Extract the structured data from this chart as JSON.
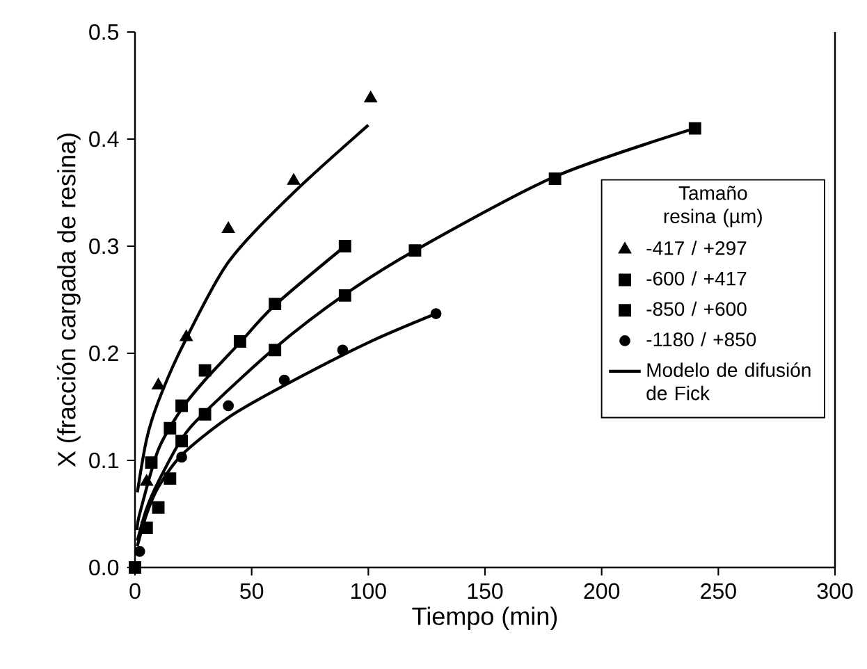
{
  "chart_data": {
    "type": "scatter",
    "xlabel": "Tiempo (min)",
    "ylabel": "X (fracción cargada de resina)",
    "legend_title": "Tamaño resina (µm)",
    "legend": "right",
    "xlim": [
      0,
      300
    ],
    "xticks": [
      0,
      50,
      100,
      150,
      200,
      250,
      300
    ],
    "ylim": [
      0,
      0.5
    ],
    "yticks": [
      {
        "value": 0,
        "label": "0.0"
      },
      {
        "value": 0.1,
        "label": "0.1"
      },
      {
        "value": 0.2,
        "label": "0.2"
      },
      {
        "value": 0.3,
        "label": "0.3"
      },
      {
        "value": 0.4,
        "label": "0.4"
      },
      {
        "value": 0.5,
        "label": "0.5"
      }
    ],
    "series": [
      {
        "name": "-417 / +297",
        "color": "#000000",
        "marker": "triangle",
        "x": [
          5,
          10,
          22,
          40,
          68,
          101
        ],
        "values": [
          0.08,
          0.17,
          0.215,
          0.316,
          0.361,
          0.438
        ]
      },
      {
        "name": "-600 / +417",
        "color": "#000000",
        "marker": "square",
        "x": [
          7,
          15,
          20,
          30,
          45,
          60,
          90
        ],
        "values": [
          0.098,
          0.13,
          0.151,
          0.184,
          0.211,
          0.246,
          0.3
        ]
      },
      {
        "name": "-850 / +600",
        "color": "#000000",
        "marker": "square",
        "x": [
          0,
          5,
          10,
          15,
          20,
          30,
          60,
          90,
          120,
          180,
          240
        ],
        "values": [
          0,
          0.037,
          0.056,
          0.083,
          0.118,
          0.143,
          0.203,
          0.254,
          0.296,
          0.363,
          0.41
        ]
      },
      {
        "name": "-1180 / +850",
        "color": "#000000",
        "marker": "circle",
        "x": [
          2,
          20,
          40,
          64,
          89,
          129
        ],
        "values": [
          0.015,
          0.103,
          0.151,
          0.175,
          0.203,
          0.237
        ]
      },
      {
        "name": "Modelo de difusión de Fick",
        "type": "line",
        "color": "#000000",
        "marker": "none",
        "x": [
          1,
          5,
          10,
          20,
          40,
          68,
          100
        ],
        "values": [
          0.07,
          0.12,
          0.155,
          0.205,
          0.285,
          0.35,
          0.413
        ]
      },
      {
        "type": "line",
        "color": "#000000",
        "marker": "none",
        "x": [
          1,
          2,
          10,
          20,
          30,
          45,
          60,
          90
        ],
        "values": [
          0.035,
          0.05,
          0.11,
          0.148,
          0.175,
          0.21,
          0.245,
          0.3
        ]
      },
      {
        "type": "line",
        "color": "#000000",
        "marker": "none",
        "x": [
          1,
          5,
          10,
          20,
          30,
          60,
          90,
          120,
          180,
          240
        ],
        "values": [
          0.025,
          0.055,
          0.08,
          0.12,
          0.145,
          0.205,
          0.255,
          0.296,
          0.365,
          0.41
        ]
      },
      {
        "type": "line",
        "color": "#000000",
        "marker": "none",
        "x": [
          1,
          5,
          10,
          20,
          40,
          64,
          100,
          129
        ],
        "values": [
          0.02,
          0.05,
          0.075,
          0.105,
          0.14,
          0.17,
          0.21,
          0.237
        ]
      }
    ]
  }
}
